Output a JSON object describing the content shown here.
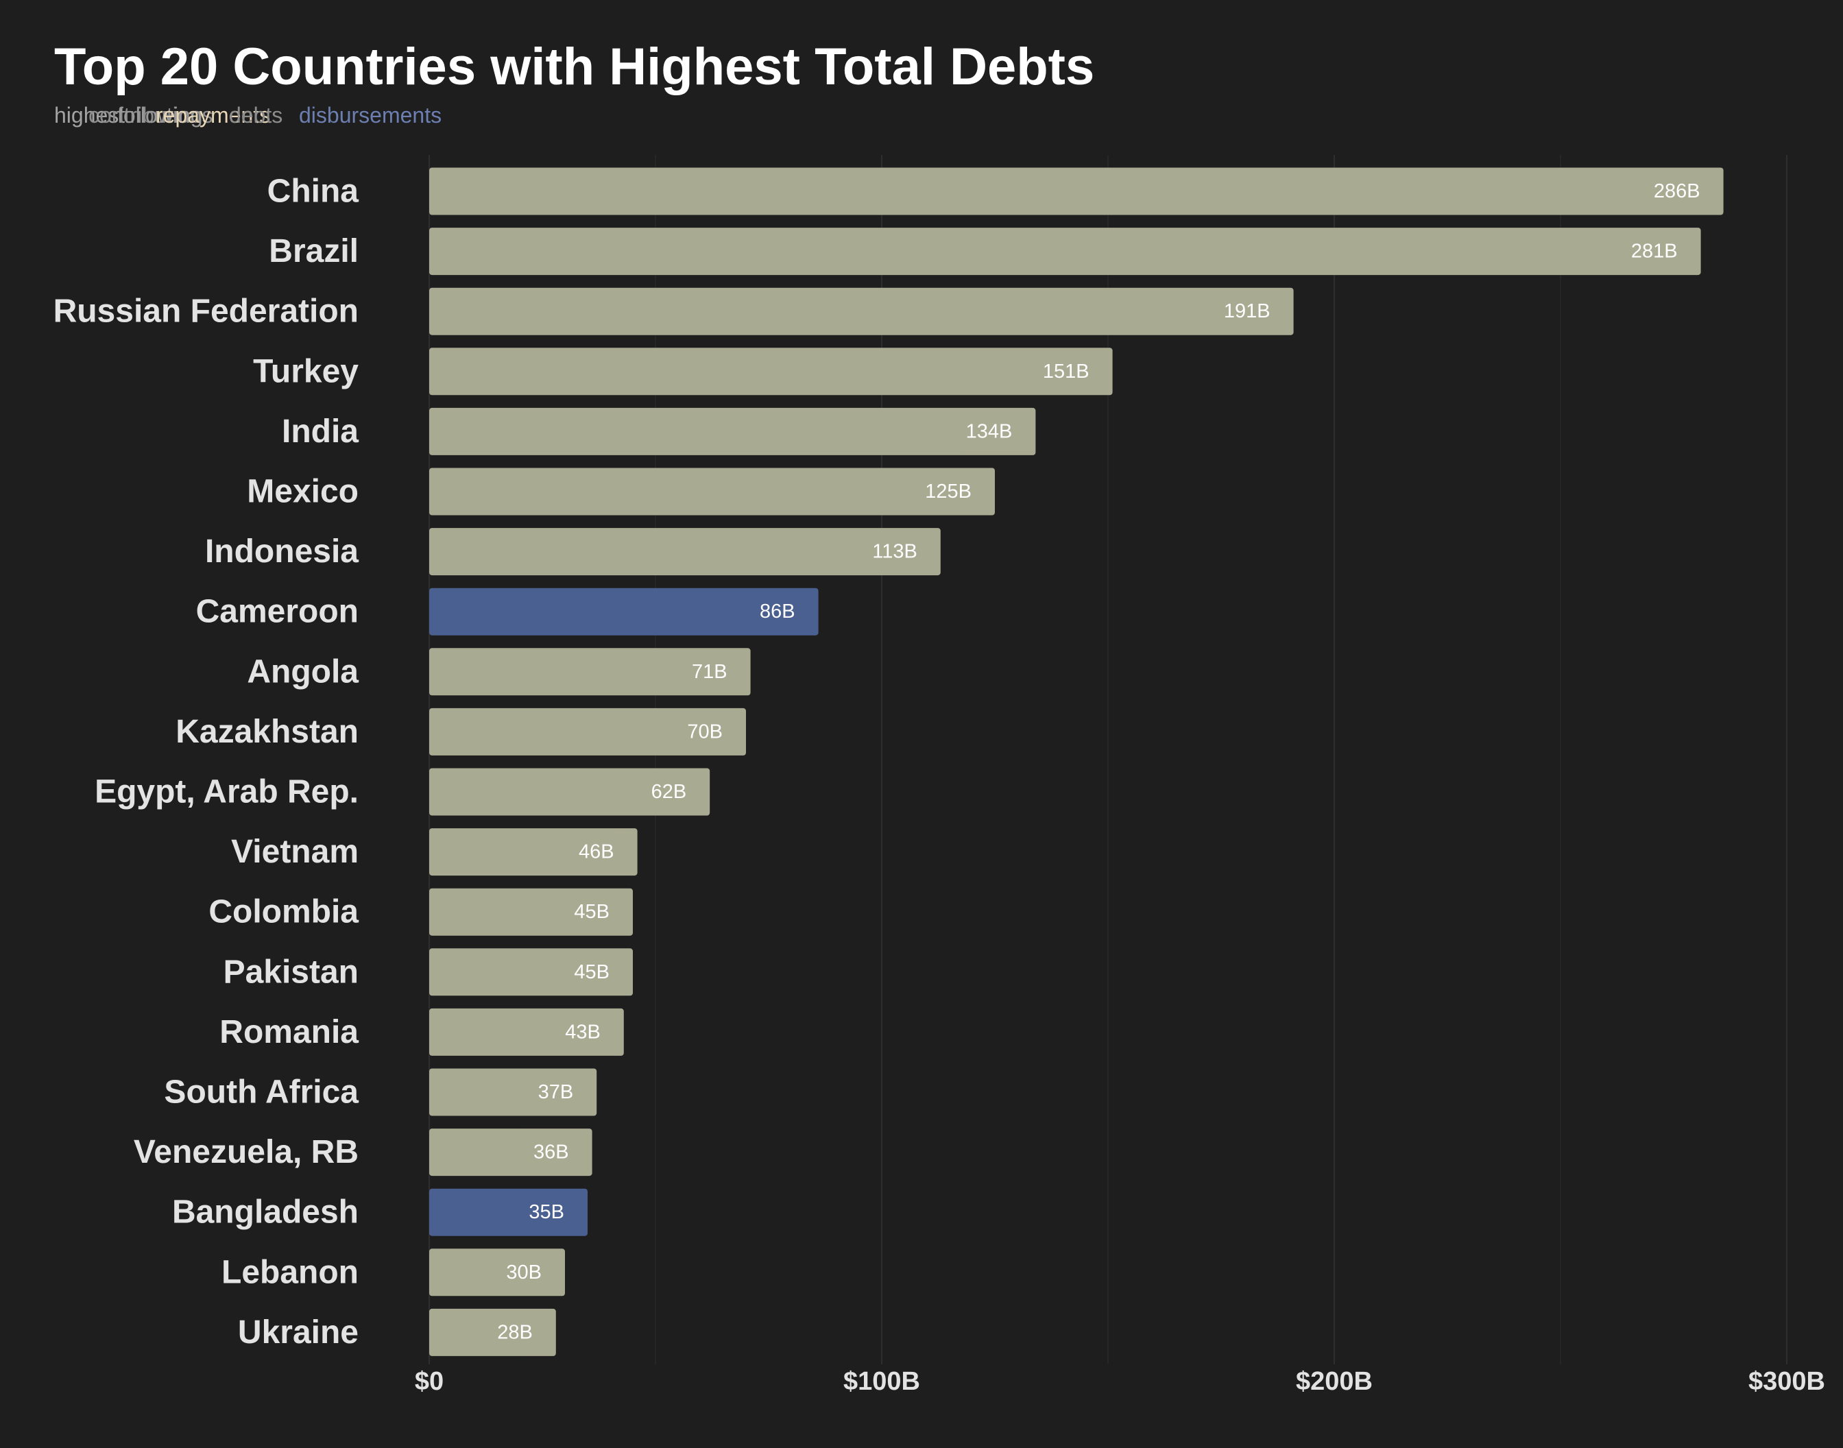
{
  "chart_data": {
    "type": "bar",
    "orientation": "horizontal",
    "title": "Top 20 Countries with Highest Total Debts",
    "subtitle_words": [
      {
        "text": "highest",
        "color": "#a3a3a3"
      },
      {
        "text": "contributions",
        "color": "#8c8c8c"
      },
      {
        "text": "following",
        "color": "#9a9a9a"
      },
      {
        "text": "repayments",
        "color": "#e8d6b8"
      },
      {
        "text": "debts",
        "color": "#8c8c8c"
      },
      {
        "text": "disbursements",
        "color": "#6c7fb0"
      }
    ],
    "categories": [
      "China",
      "Brazil",
      "Russian Federation",
      "Turkey",
      "India",
      "Mexico",
      "Indonesia",
      "Cameroon",
      "Angola",
      "Kazakhstan",
      "Egypt, Arab Rep.",
      "Vietnam",
      "Colombia",
      "Pakistan",
      "Romania",
      "South Africa",
      "Venezuela, RB",
      "Bangladesh",
      "Lebanon",
      "Ukraine"
    ],
    "values": [
      286,
      281,
      191,
      151,
      134,
      125,
      113,
      86,
      71,
      70,
      62,
      46,
      45,
      45,
      43,
      37,
      36,
      35,
      30,
      28
    ],
    "value_labels": [
      "286B",
      "281B",
      "191B",
      "151B",
      "134B",
      "125B",
      "113B",
      "86B",
      "71B",
      "70B",
      "62B",
      "46B",
      "45B",
      "45B",
      "43B",
      "37B",
      "36B",
      "35B",
      "30B",
      "28B"
    ],
    "highlighted": [
      "Cameroon",
      "Bangladesh"
    ],
    "unit": "billions USD",
    "xlim": [
      0,
      300
    ],
    "x_ticks": [
      0,
      100,
      200,
      300
    ],
    "x_tick_labels": [
      "$0",
      "$100B",
      "$200B",
      "$300B"
    ],
    "grid": "vertical only",
    "legend": "none",
    "colors": {
      "background": "#1e1e1e",
      "bar": "#a9aa92",
      "highlight": "#4a6090",
      "grid_major": "#2e2e2e",
      "grid_minor": "#262626",
      "label_text": "#e3e3e3",
      "title_text": "#ffffff",
      "value_text": "#ffffff"
    }
  }
}
